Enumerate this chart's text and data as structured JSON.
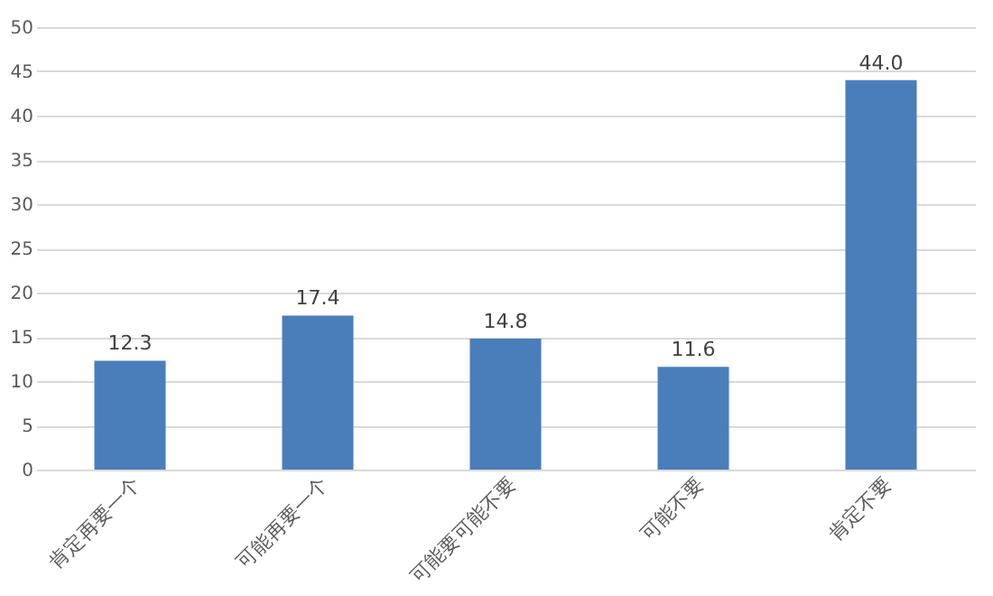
{
  "chart_data": {
    "type": "bar",
    "categories": [
      "肯定再要一个",
      "可能再要一个",
      "可能要可能不要",
      "可能不要",
      "肯定不要"
    ],
    "values": [
      12.3,
      17.4,
      14.8,
      11.6,
      44.0
    ],
    "value_labels": [
      "12.3",
      "17.4",
      "14.8",
      "11.6",
      "44.0"
    ],
    "color": "#4a7ebb",
    "ylim": [
      0,
      50
    ],
    "yticks": [
      0,
      5,
      10,
      15,
      20,
      25,
      30,
      35,
      40,
      45,
      50
    ],
    "grid": "y"
  }
}
